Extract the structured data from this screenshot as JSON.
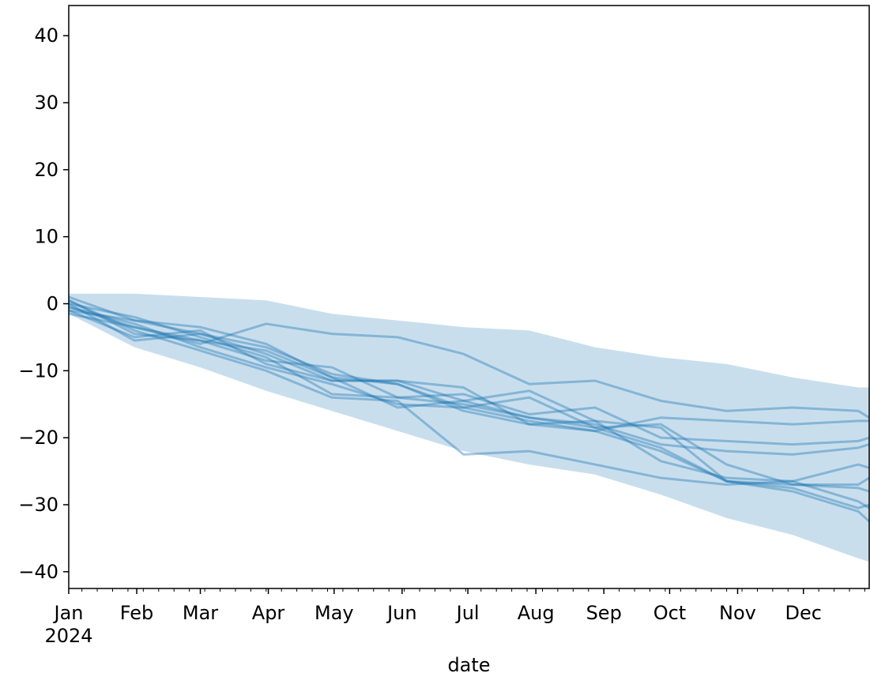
{
  "chart_data": {
    "type": "line",
    "xlabel": "date",
    "ylabel": "",
    "ylim": [
      -42.5,
      44.5
    ],
    "xlim": [
      "2024-01-01",
      "2024-12-31"
    ],
    "yticks": [
      40,
      30,
      20,
      10,
      0,
      -10,
      -20,
      -30,
      -40
    ],
    "ytick_labels": [
      "40",
      "30",
      "20",
      "10",
      "0",
      "−10",
      "−20",
      "−30",
      "−40"
    ],
    "xticks": [
      {
        "date": "2024-01-01",
        "label": "Jan",
        "sublabel": "2024"
      },
      {
        "date": "2024-02-01",
        "label": "Feb"
      },
      {
        "date": "2024-03-01",
        "label": "Mar"
      },
      {
        "date": "2024-04-01",
        "label": "Apr"
      },
      {
        "date": "2024-05-01",
        "label": "May"
      },
      {
        "date": "2024-06-01",
        "label": "Jun"
      },
      {
        "date": "2024-07-01",
        "label": "Jul"
      },
      {
        "date": "2024-08-01",
        "label": "Aug"
      },
      {
        "date": "2024-09-01",
        "label": "Sep"
      },
      {
        "date": "2024-10-01",
        "label": "Oct"
      },
      {
        "date": "2024-11-01",
        "label": "Nov"
      },
      {
        "date": "2024-12-01",
        "label": "Dec"
      }
    ],
    "colors": {
      "line": "#1f77b4",
      "band": "#1f77b4"
    },
    "x": [
      "2024-01-01",
      "2024-01-31",
      "2024-03-01",
      "2024-03-31",
      "2024-04-30",
      "2024-05-30",
      "2024-06-29",
      "2024-07-29",
      "2024-08-28",
      "2024-09-27",
      "2024-10-27",
      "2024-11-26",
      "2024-12-26",
      "2024-12-31"
    ],
    "band": {
      "lower": [
        -1.5,
        -6.5,
        -9.5,
        -13.0,
        -16.0,
        -19.0,
        -22.0,
        -24.0,
        -25.5,
        -28.5,
        -32.0,
        -34.5,
        -38.0,
        -38.5
      ],
      "upper": [
        1.5,
        1.5,
        1.0,
        0.5,
        -1.5,
        -2.5,
        -3.5,
        -4.0,
        -6.5,
        -8.0,
        -9.0,
        -11.0,
        -12.5,
        -12.5
      ]
    },
    "series": [
      {
        "values": [
          0.5,
          -4.5,
          -5.5,
          -8.5,
          -9.5,
          -14.0,
          -15.0,
          -17.0,
          -18.5,
          -21.5,
          -26.5,
          -27.0,
          -27.5,
          -28.0
        ]
      },
      {
        "values": [
          -0.5,
          -3.5,
          -6.0,
          -3.0,
          -4.5,
          -5.0,
          -7.5,
          -12.0,
          -11.5,
          -14.5,
          -16.0,
          -15.5,
          -16.0,
          -17.0
        ]
      },
      {
        "values": [
          1.0,
          -2.5,
          -4.5,
          -6.5,
          -10.5,
          -12.0,
          -15.5,
          -17.5,
          -19.0,
          -22.0,
          -26.5,
          -28.0,
          -31.0,
          -32.5
        ]
      },
      {
        "values": [
          -1.0,
          -5.0,
          -4.0,
          -9.0,
          -11.5,
          -11.5,
          -14.5,
          -13.0,
          -17.5,
          -18.5,
          -26.5,
          -27.5,
          -30.5,
          -30.0
        ]
      },
      {
        "values": [
          0.0,
          -2.0,
          -5.0,
          -8.0,
          -13.5,
          -14.0,
          -13.5,
          -16.5,
          -15.5,
          -20.0,
          -20.5,
          -21.0,
          -20.5,
          -20.0
        ]
      },
      {
        "values": [
          -0.5,
          -3.0,
          -6.5,
          -9.5,
          -12.0,
          -15.0,
          -15.5,
          -14.0,
          -18.5,
          -18.0,
          -24.0,
          -27.0,
          -27.0,
          -26.0
        ]
      },
      {
        "values": [
          -1.5,
          -3.5,
          -5.5,
          -7.0,
          -11.0,
          -12.0,
          -16.0,
          -18.0,
          -19.0,
          -17.0,
          -17.5,
          -18.0,
          -17.5,
          -17.5
        ]
      },
      {
        "values": [
          0.5,
          -4.0,
          -7.0,
          -10.0,
          -14.0,
          -14.5,
          -22.5,
          -22.0,
          -24.0,
          -26.0,
          -27.0,
          -26.5,
          -29.5,
          -30.5
        ]
      },
      {
        "values": [
          -1.0,
          -2.5,
          -3.5,
          -6.0,
          -11.0,
          -15.5,
          -14.5,
          -17.0,
          -18.0,
          -21.0,
          -22.0,
          -22.5,
          -21.5,
          -21.0
        ]
      },
      {
        "values": [
          0.0,
          -5.5,
          -4.5,
          -7.5,
          -11.5,
          -11.5,
          -12.5,
          -18.0,
          -17.5,
          -23.5,
          -26.0,
          -26.5,
          -24.0,
          -24.5
        ]
      }
    ]
  }
}
